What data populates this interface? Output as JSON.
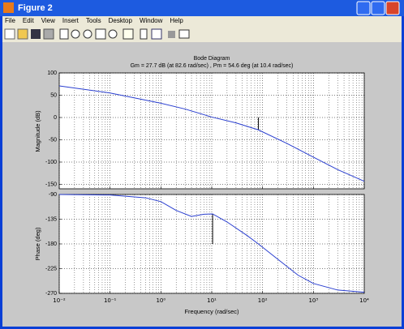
{
  "window": {
    "title": "Figure 2",
    "menu": [
      "File",
      "Edit",
      "View",
      "Insert",
      "Tools",
      "Desktop",
      "Window",
      "Help"
    ]
  },
  "chart_data": [
    {
      "type": "line",
      "title": "Bode Diagram",
      "subtitle": "Gm = 27.7 dB (at 82.6 rad/sec) ,  Pm = 54.6 deg (at 10.4 rad/sec)",
      "ylabel": "Magnitude (dB)",
      "x": [
        0.01,
        0.1,
        1,
        3,
        10,
        30,
        82.6,
        300,
        1000,
        3000,
        10000
      ],
      "series": [
        {
          "color": "#2a3fd0",
          "values": [
            71,
            55,
            32,
            19,
            1,
            -12,
            -27.7,
            -58,
            -89,
            -117,
            -143
          ]
        }
      ],
      "margin": {
        "x": 82.6,
        "from": 0,
        "to": -27.7
      },
      "xlim": [
        0.01,
        10000
      ],
      "log_x": true,
      "xticks": [
        0.01,
        0.1,
        1,
        10,
        100,
        1000,
        10000
      ],
      "ylim": [
        -160,
        100
      ],
      "yticks": [
        -150,
        -100,
        -50,
        0,
        50,
        100
      ],
      "grid": true
    },
    {
      "type": "line",
      "xlabel": "Frequency  (rad/sec)",
      "ylabel": "Phase (deg)",
      "x": [
        0.01,
        0.1,
        0.5,
        1,
        2,
        4,
        7,
        10.4,
        20,
        50,
        82.6,
        200,
        500,
        1000,
        3000,
        10000
      ],
      "series": [
        {
          "color": "#2a3fd0",
          "values": [
            -90,
            -91,
            -96,
            -103,
            -119,
            -130,
            -126,
            -125.4,
            -140,
            -165,
            -180,
            -208,
            -237,
            -252,
            -264,
            -268
          ]
        }
      ],
      "margin": {
        "x": 10.4,
        "from": -180,
        "to": -125.4
      },
      "xlim": [
        0.01,
        10000
      ],
      "log_x": true,
      "xticks": [
        {
          "value": 0.01,
          "label": "10⁻²"
        },
        {
          "value": 0.1,
          "label": "10⁻¹"
        },
        {
          "value": 1,
          "label": "10⁰"
        },
        {
          "value": 10,
          "label": "10¹"
        },
        {
          "value": 100,
          "label": "10²"
        },
        {
          "value": 1000,
          "label": "10³"
        },
        {
          "value": 10000,
          "label": "10⁴"
        }
      ],
      "ylim": [
        -270,
        -90
      ],
      "yticks": [
        -270,
        -225,
        -180,
        -135,
        -90
      ],
      "grid": true
    }
  ]
}
